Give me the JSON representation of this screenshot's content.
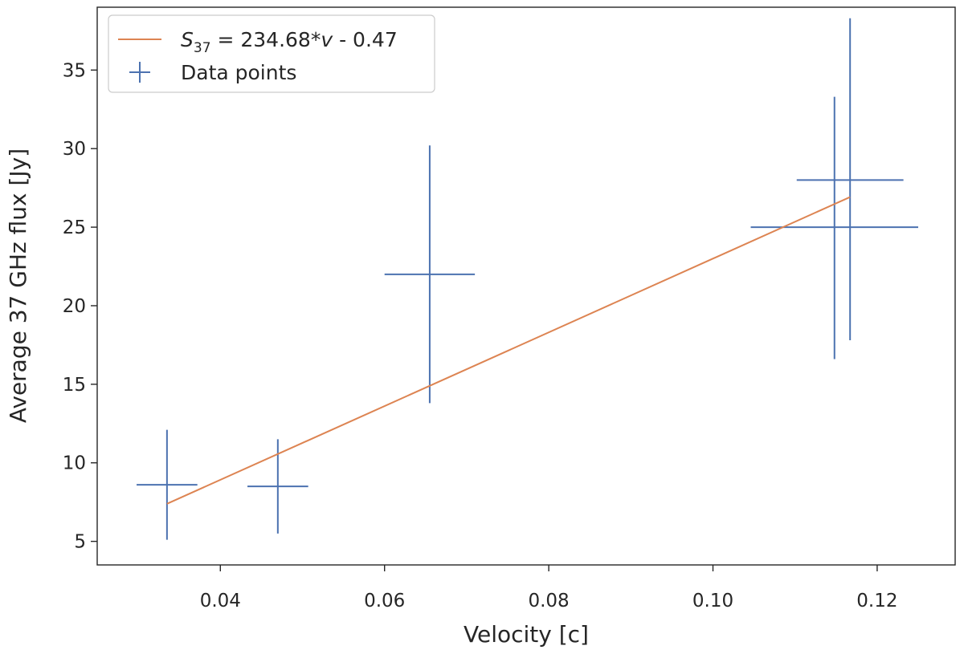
{
  "chart_data": {
    "type": "scatter",
    "xlabel": "Velocity [c]",
    "ylabel": "Average 37 GHz flux [Jy]",
    "xlim": [
      0.025,
      0.1295
    ],
    "ylim": [
      3.5,
      39.0
    ],
    "xticks": [
      0.04,
      0.06,
      0.08,
      0.1,
      0.12
    ],
    "xtick_labels": [
      "0.04",
      "0.06",
      "0.08",
      "0.10",
      "0.12"
    ],
    "yticks": [
      5,
      10,
      15,
      20,
      25,
      30,
      35
    ],
    "ytick_labels": [
      "5",
      "10",
      "15",
      "20",
      "25",
      "30",
      "35"
    ],
    "grid": false,
    "legend_position": "top-left",
    "fit_line": {
      "legend_var": "S",
      "legend_sub": "37",
      "legend_eq": " = 234.68*",
      "legend_v": "v",
      "legend_tail": " - 0.47",
      "slope": 234.68,
      "intercept": -0.47,
      "x_range": [
        0.0335,
        0.1167
      ],
      "color": "#dd8452"
    },
    "series": [
      {
        "name": "Data points",
        "color": "#4c72b0",
        "points": [
          {
            "x": 0.0335,
            "y": 8.6,
            "xerr": 0.0037,
            "y_low": 5.1,
            "y_high": 12.1
          },
          {
            "x": 0.047,
            "y": 8.5,
            "xerr": 0.0037,
            "y_low": 5.5,
            "y_high": 11.5
          },
          {
            "x": 0.0655,
            "y": 22.0,
            "xerr": 0.0055,
            "y_low": 13.8,
            "y_high": 30.2
          },
          {
            "x": 0.1148,
            "y": 25.0,
            "xerr": 0.0102,
            "y_low": 16.6,
            "y_high": 33.3
          },
          {
            "x": 0.1167,
            "y": 28.0,
            "xerr": 0.0065,
            "y_low": 17.8,
            "y_high": 38.3
          }
        ]
      }
    ]
  }
}
